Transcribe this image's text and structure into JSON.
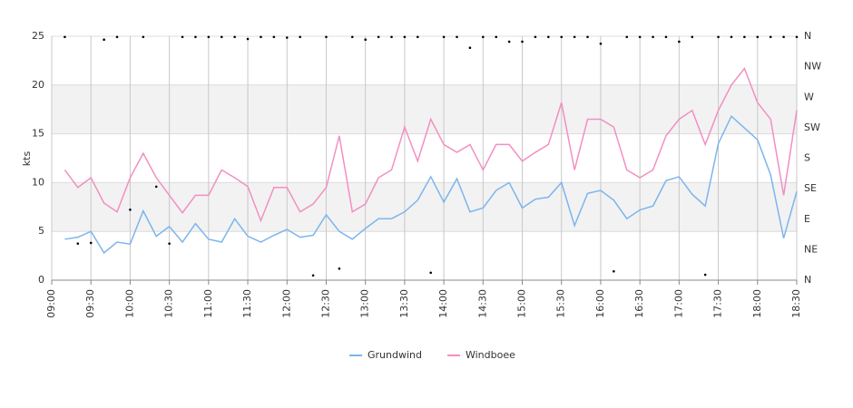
{
  "chart_data": {
    "type": "line",
    "ylabel": "kts",
    "x": [
      "09:10",
      "09:20",
      "09:30",
      "09:40",
      "09:50",
      "10:00",
      "10:10",
      "10:20",
      "10:30",
      "10:40",
      "10:50",
      "11:00",
      "11:10",
      "11:20",
      "11:30",
      "11:40",
      "11:50",
      "12:00",
      "12:10",
      "12:20",
      "12:30",
      "12:40",
      "12:50",
      "13:00",
      "13:10",
      "13:20",
      "13:30",
      "13:40",
      "13:50",
      "14:00",
      "14:10",
      "14:20",
      "14:30",
      "14:40",
      "14:50",
      "15:00",
      "15:10",
      "15:20",
      "15:30",
      "15:40",
      "15:50",
      "16:00",
      "16:10",
      "16:20",
      "16:30",
      "16:40",
      "16:50",
      "17:00",
      "17:10",
      "17:20",
      "17:30",
      "17:40",
      "17:50",
      "18:00",
      "18:10",
      "18:20",
      "18:30"
    ],
    "xlim": [
      "09:00",
      "18:30"
    ],
    "xticks": [
      "09:00",
      "09:30",
      "10:00",
      "10:30",
      "11:00",
      "11:30",
      "12:00",
      "12:30",
      "13:00",
      "13:30",
      "14:00",
      "14:30",
      "15:00",
      "15:30",
      "16:00",
      "16:30",
      "17:00",
      "17:30",
      "18:00",
      "18:30"
    ],
    "ylim": [
      0,
      25
    ],
    "yticks": [
      0,
      5,
      10,
      15,
      20,
      25
    ],
    "bands": [
      [
        5,
        10
      ],
      [
        15,
        20
      ]
    ],
    "y2lim": [
      0,
      360
    ],
    "y2ticks": [
      {
        "value": 0,
        "label": "N"
      },
      {
        "value": 45,
        "label": "NE"
      },
      {
        "value": 90,
        "label": "E"
      },
      {
        "value": 135,
        "label": "SE"
      },
      {
        "value": 180,
        "label": "S"
      },
      {
        "value": 225,
        "label": "SW"
      },
      {
        "value": 270,
        "label": "W"
      },
      {
        "value": 315,
        "label": "NW"
      },
      {
        "value": 360,
        "label": "N"
      }
    ],
    "grid": true,
    "legend": "bottom",
    "series": [
      {
        "name": "Grundwind",
        "color": "#7cb5ec",
        "values": [
          4.2,
          4.4,
          5.0,
          2.8,
          3.9,
          3.7,
          7.1,
          4.5,
          5.5,
          3.9,
          5.8,
          4.2,
          3.9,
          6.3,
          4.5,
          3.9,
          4.6,
          5.2,
          4.4,
          4.6,
          6.7,
          5.0,
          4.2,
          5.3,
          6.3,
          6.3,
          7.0,
          8.2,
          10.6,
          8.0,
          10.4,
          7.0,
          7.4,
          9.2,
          10.0,
          7.4,
          8.3,
          8.5,
          10.0,
          5.6,
          8.9,
          9.2,
          8.2,
          6.3,
          7.2,
          7.6,
          10.2,
          10.6,
          8.8,
          7.6,
          14.0,
          16.8,
          15.6,
          14.4,
          10.8,
          4.3,
          9.1
        ]
      },
      {
        "name": "Windboee",
        "color": "#f28fc2",
        "values": [
          11.3,
          9.5,
          10.5,
          7.9,
          7.0,
          10.5,
          13.0,
          10.5,
          8.7,
          6.9,
          8.7,
          8.7,
          11.3,
          10.5,
          9.6,
          6.1,
          9.5,
          9.5,
          7.0,
          7.8,
          9.5,
          14.8,
          7.0,
          7.8,
          10.5,
          11.3,
          15.7,
          12.2,
          16.5,
          13.9,
          13.1,
          13.9,
          11.3,
          13.9,
          13.9,
          12.2,
          13.1,
          13.9,
          18.2,
          11.3,
          16.5,
          16.5,
          15.7,
          11.3,
          10.5,
          11.3,
          14.8,
          16.5,
          17.4,
          13.9,
          17.4,
          20.0,
          21.7,
          18.2,
          16.5,
          8.7,
          17.4
        ]
      },
      {
        "type": "scatter",
        "axis": "y2",
        "color": "#000000",
        "values": [
          359,
          54,
          55,
          355,
          359,
          104,
          359,
          138,
          54,
          359,
          359,
          359,
          359,
          359,
          356,
          359,
          359,
          358,
          359,
          7,
          359,
          17,
          359,
          355,
          359,
          359,
          359,
          359,
          11,
          359,
          359,
          343,
          359,
          359,
          352,
          352,
          359,
          359,
          359,
          359,
          359,
          349,
          13,
          359,
          359,
          359,
          359,
          352,
          359,
          8,
          359,
          359,
          359,
          359,
          359,
          359,
          359
        ]
      }
    ]
  }
}
